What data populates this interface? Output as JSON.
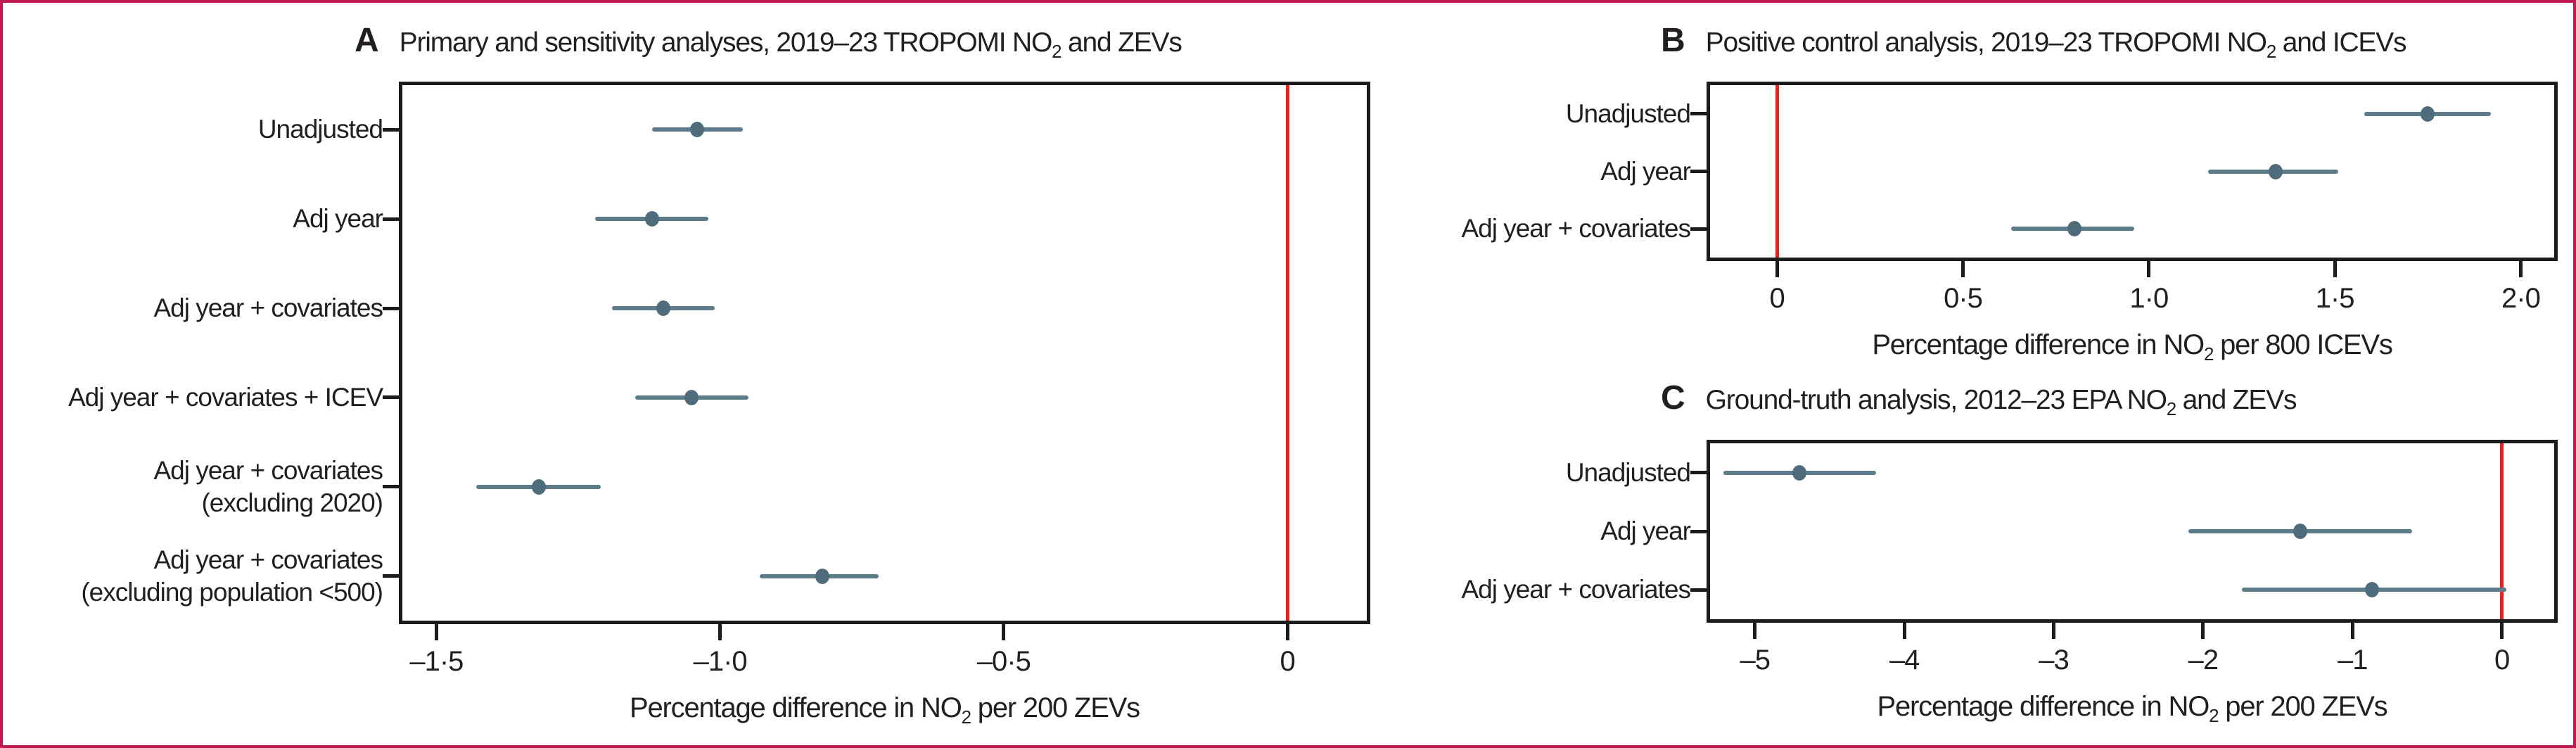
{
  "figure": {
    "background": "#ffffff",
    "border_color": "#c01a50",
    "frame_color": "#1c1c1c",
    "text_color": "#231f20",
    "point_color": "#4e6c7b",
    "ci_color": "#5d7c8a",
    "zero_line_color": "#e8231c"
  },
  "chart_data": [
    {
      "type": "forest-dot-ci",
      "panel_letter": "A",
      "title": {
        "pre": "Primary and sensitivity analyses, 2019–23 TROPOMI NO",
        "sub": "2",
        "post": " and ZEVs"
      },
      "xlabel": {
        "pre": "Percentage difference in NO",
        "sub": "2",
        "post": " per 200 ZEVs"
      },
      "xlim": [
        -1.56,
        0.14
      ],
      "zero_line": 0,
      "grid": false,
      "xticks": [
        {
          "value": -1.5,
          "label": "–1·5"
        },
        {
          "value": -1.0,
          "label": "–1·0"
        },
        {
          "value": -0.5,
          "label": "–0·5"
        },
        {
          "value": 0,
          "label": "0"
        }
      ],
      "rows": [
        {
          "label_lines": [
            "Unadjusted"
          ],
          "estimate": -1.04,
          "ci_low": -1.12,
          "ci_high": -0.96
        },
        {
          "label_lines": [
            "Adj year"
          ],
          "estimate": -1.12,
          "ci_low": -1.22,
          "ci_high": -1.02
        },
        {
          "label_lines": [
            "Adj year + covariates"
          ],
          "estimate": -1.1,
          "ci_low": -1.19,
          "ci_high": -1.01
        },
        {
          "label_lines": [
            "Adj year + covariates + ICEV"
          ],
          "estimate": -1.05,
          "ci_low": -1.15,
          "ci_high": -0.95
        },
        {
          "label_lines": [
            "Adj year + covariates",
            "(excluding 2020)"
          ],
          "estimate": -1.32,
          "ci_low": -1.43,
          "ci_high": -1.21
        },
        {
          "label_lines": [
            "Adj year + covariates",
            "(excluding population <500)"
          ],
          "estimate": -0.82,
          "ci_low": -0.93,
          "ci_high": -0.72
        }
      ]
    },
    {
      "type": "forest-dot-ci",
      "panel_letter": "B",
      "title": {
        "pre": "Positive control analysis, 2019–23 TROPOMI NO",
        "sub": "2",
        "post": " and ICEVs"
      },
      "xlabel": {
        "pre": "Percentage difference in NO",
        "sub": "2",
        "post": " per 800 ICEVs"
      },
      "xlim": [
        -0.18,
        2.09
      ],
      "zero_line": 0,
      "grid": false,
      "xticks": [
        {
          "value": 0,
          "label": "0"
        },
        {
          "value": 0.5,
          "label": "0·5"
        },
        {
          "value": 1.0,
          "label": "1·0"
        },
        {
          "value": 1.5,
          "label": "1·5"
        },
        {
          "value": 2.0,
          "label": "2·0"
        }
      ],
      "rows": [
        {
          "label_lines": [
            "Unadjusted"
          ],
          "estimate": 1.75,
          "ci_low": 1.58,
          "ci_high": 1.92
        },
        {
          "label_lines": [
            "Adj year"
          ],
          "estimate": 1.34,
          "ci_low": 1.16,
          "ci_high": 1.51
        },
        {
          "label_lines": [
            "Adj year + covariates"
          ],
          "estimate": 0.8,
          "ci_low": 0.63,
          "ci_high": 0.96
        }
      ]
    },
    {
      "type": "forest-dot-ci",
      "panel_letter": "C",
      "title": {
        "pre": "Ground-truth analysis, 2012–23 EPA NO",
        "sub": "2",
        "post": " and ZEVs"
      },
      "xlabel": {
        "pre": "Percentage difference in NO",
        "sub": "2",
        "post": " per 200 ZEVs"
      },
      "xlim": [
        -5.3,
        0.35
      ],
      "zero_line": 0,
      "grid": false,
      "xticks": [
        {
          "value": -5,
          "label": "–5"
        },
        {
          "value": -4,
          "label": "–4"
        },
        {
          "value": -3,
          "label": "–3"
        },
        {
          "value": -2,
          "label": "–2"
        },
        {
          "value": -1,
          "label": "–1"
        },
        {
          "value": 0,
          "label": "0"
        }
      ],
      "rows": [
        {
          "label_lines": [
            "Unadjusted"
          ],
          "estimate": -4.7,
          "ci_low": -5.21,
          "ci_high": -4.19
        },
        {
          "label_lines": [
            "Adj year"
          ],
          "estimate": -1.35,
          "ci_low": -2.1,
          "ci_high": -0.6
        },
        {
          "label_lines": [
            "Adj year + covariates"
          ],
          "estimate": -0.87,
          "ci_low": -1.74,
          "ci_high": 0.03
        }
      ]
    }
  ]
}
